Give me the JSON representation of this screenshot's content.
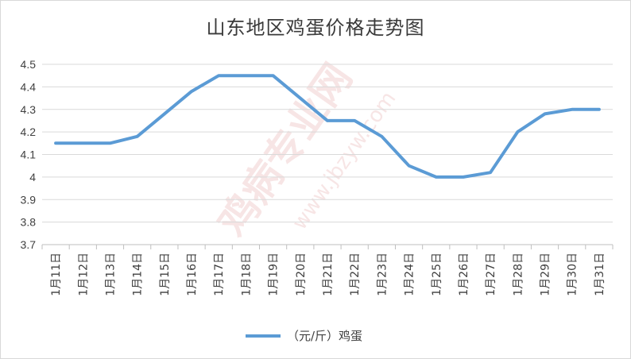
{
  "chart_data": {
    "type": "line",
    "title": "山东地区鸡蛋价格走势图",
    "categories": [
      "1月11日",
      "1月12日",
      "1月13日",
      "1月14日",
      "1月15日",
      "1月16日",
      "1月17日",
      "1月18日",
      "1月19日",
      "1月20日",
      "1月21日",
      "1月22日",
      "1月23日",
      "1月24日",
      "1月25日",
      "1月26日",
      "1月27日",
      "1月28日",
      "1月29日",
      "1月30日",
      "1月31日"
    ],
    "series": [
      {
        "name": "（元/斤）鸡蛋",
        "values": [
          4.15,
          4.15,
          4.15,
          4.18,
          4.28,
          4.38,
          4.45,
          4.45,
          4.45,
          4.35,
          4.25,
          4.25,
          4.18,
          4.05,
          4.0,
          4.0,
          4.02,
          4.2,
          4.28,
          4.3,
          4.3
        ]
      }
    ],
    "y_ticks": [
      "3.7",
      "3.8",
      "3.9",
      "4",
      "4.1",
      "4.2",
      "4.3",
      "4.4",
      "4.5"
    ],
    "ylim": [
      3.7,
      4.5
    ],
    "xlabel": "",
    "ylabel": "",
    "grid": true,
    "legend_position": "bottom",
    "line_color": "#5b9bd5",
    "grid_color": "#d9d9d9",
    "axis_color": "#bfbfbf"
  },
  "watermark": {
    "brand": "鸡病专业网",
    "url": "www.jbzyw.com",
    "color": "#e8b4b4"
  }
}
